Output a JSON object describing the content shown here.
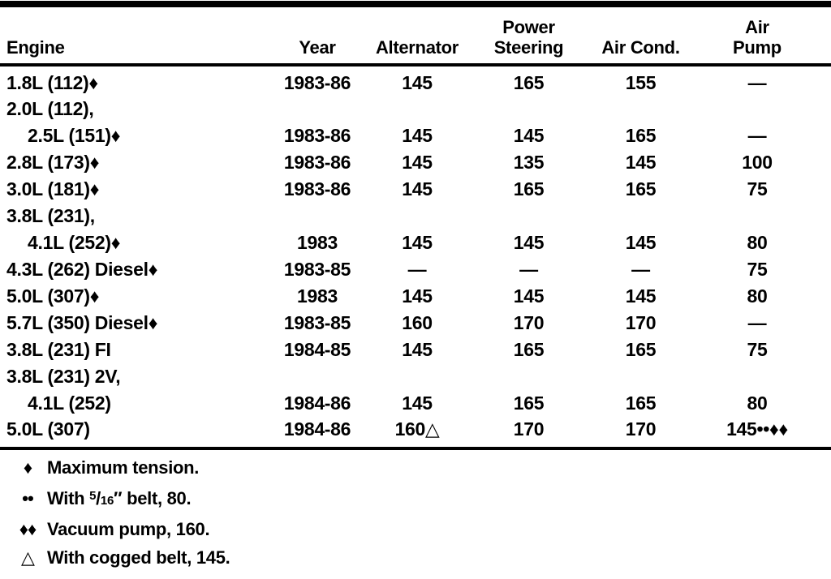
{
  "colors": {
    "ink": "#000000",
    "paper": "#ffffff"
  },
  "table": {
    "columns": [
      {
        "line1": "",
        "line2": "Engine"
      },
      {
        "line1": "",
        "line2": "Year"
      },
      {
        "line1": "",
        "line2": "Alternator"
      },
      {
        "line1": "Power",
        "line2": "Steering"
      },
      {
        "line1": "",
        "line2": "Air Cond."
      },
      {
        "line1": "Air",
        "line2": "Pump"
      }
    ],
    "rows": [
      [
        "1.8L (112)♦",
        "1983-86",
        "145",
        "165",
        "155",
        "—"
      ],
      [
        "2.0L (112),",
        "",
        "",
        "",
        "",
        ""
      ],
      [
        "2.5L (151)♦",
        "1983-86",
        "145",
        "145",
        "165",
        "—"
      ],
      [
        "2.8L (173)♦",
        "1983-86",
        "145",
        "135",
        "145",
        "100"
      ],
      [
        "3.0L (181)♦",
        "1983-86",
        "145",
        "165",
        "165",
        "75"
      ],
      [
        "3.8L (231),",
        "",
        "",
        "",
        "",
        ""
      ],
      [
        "4.1L (252)♦",
        "1983",
        "145",
        "145",
        "145",
        "80"
      ],
      [
        "4.3L (262) Diesel♦",
        "1983-85",
        "—",
        "—",
        "—",
        "75"
      ],
      [
        "5.0L (307)♦",
        "1983",
        "145",
        "145",
        "145",
        "80"
      ],
      [
        "5.7L (350) Diesel♦",
        "1983-85",
        "160",
        "170",
        "170",
        "—"
      ],
      [
        "3.8L (231) FI",
        "1984-85",
        "145",
        "165",
        "165",
        "75"
      ],
      [
        "3.8L (231) 2V,",
        "",
        "",
        "",
        "",
        ""
      ],
      [
        "4.1L (252)",
        "1984-86",
        "145",
        "165",
        "165",
        "80"
      ],
      [
        "5.0L (307)",
        "1984-86",
        "160△",
        "170",
        "170",
        "145••♦♦"
      ]
    ]
  },
  "footnotes": [
    {
      "marker": "♦",
      "text": "Maximum tension."
    },
    {
      "marker": "••",
      "pre": "With ",
      "num": "5",
      "sep": "/",
      "den": "16",
      "post": "″ belt, 80."
    },
    {
      "marker": "♦♦",
      "text": "Vacuum pump, 160."
    },
    {
      "marker": "△",
      "text": "With cogged belt, 145."
    }
  ]
}
